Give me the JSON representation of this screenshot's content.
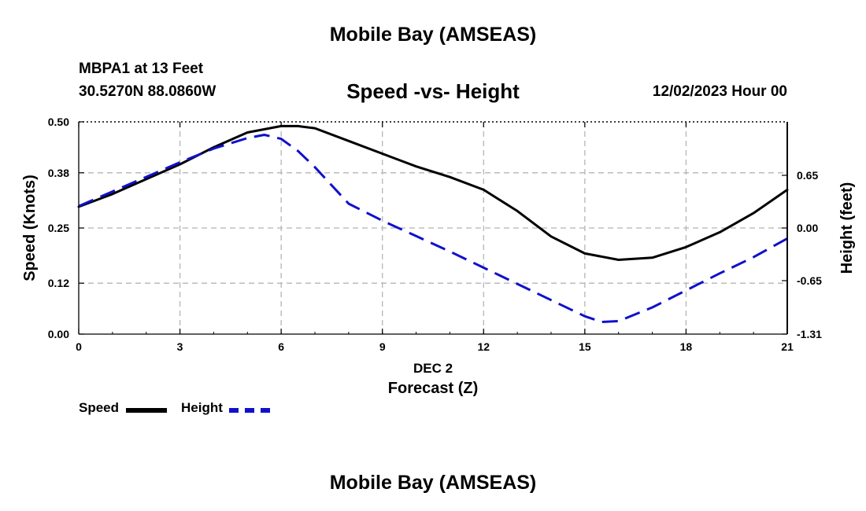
{
  "header": {
    "title": "Mobile Bay (AMSEAS)",
    "station": "MBPA1 at 13 Feet",
    "coords": "30.5270N  88.0860W",
    "subtitle": "Speed -vs- Height",
    "datetime": "12/02/2023 Hour 00"
  },
  "footer": {
    "title": "Mobile Bay (AMSEAS)"
  },
  "legend": {
    "speed": "Speed",
    "height": "Height"
  },
  "chart_data": {
    "type": "line",
    "xlabel": "Forecast (Z)",
    "x_date_label": "DEC 2",
    "ylabel": "Speed (Knots)",
    "y2label": "Height (feet)",
    "xlim": [
      0,
      21
    ],
    "ylim": [
      0,
      0.5
    ],
    "y2lim": [
      -1.31,
      1.31
    ],
    "x_ticks": [
      "0",
      "3",
      "6",
      "9",
      "12",
      "15",
      "18",
      "21"
    ],
    "y_ticks": [
      "0.00",
      "0.12",
      "0.25",
      "0.38",
      "0.50"
    ],
    "y2_ticks": [
      "-1.31",
      "-0.65",
      "0.00",
      "0.65"
    ],
    "grid": true,
    "legend_position": "bottom-left",
    "series": [
      {
        "name": "Speed",
        "axis": "left",
        "color": "#000000",
        "style": "solid",
        "x": [
          0,
          1,
          2,
          3,
          4,
          5,
          6,
          6.5,
          7,
          8,
          9,
          10,
          11,
          12,
          13,
          14,
          15,
          16,
          17,
          18,
          19,
          20,
          21
        ],
        "values": [
          0.3,
          0.33,
          0.365,
          0.4,
          0.44,
          0.475,
          0.49,
          0.49,
          0.485,
          0.455,
          0.425,
          0.395,
          0.37,
          0.34,
          0.29,
          0.23,
          0.19,
          0.175,
          0.18,
          0.205,
          0.24,
          0.285,
          0.34
        ]
      },
      {
        "name": "Height",
        "axis": "right",
        "color": "#1010cc",
        "style": "dashed",
        "x": [
          0,
          1,
          2,
          3,
          4,
          5,
          5.5,
          6,
          6.5,
          7,
          8,
          9,
          10,
          11,
          12,
          13,
          14,
          15,
          15.5,
          16,
          17,
          18,
          19,
          20,
          21
        ],
        "values": [
          0.27,
          0.45,
          0.63,
          0.81,
          0.98,
          1.11,
          1.15,
          1.1,
          0.95,
          0.75,
          0.3,
          0.09,
          -0.1,
          -0.29,
          -0.49,
          -0.69,
          -0.89,
          -1.09,
          -1.16,
          -1.15,
          -0.98,
          -0.77,
          -0.56,
          -0.36,
          -0.13
        ]
      }
    ]
  }
}
